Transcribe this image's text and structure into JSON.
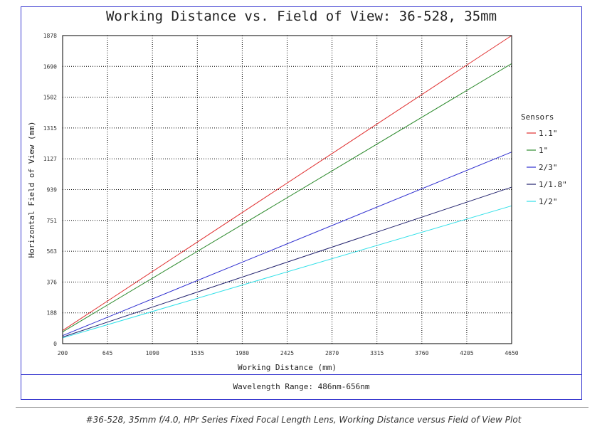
{
  "chart_data": {
    "type": "line",
    "title": "Working Distance vs. Field of View: 36-528, 35mm",
    "xlabel": "Working Distance (mm)",
    "ylabel": "Horizontal Field of View (mm)",
    "x_ticks": [
      "200",
      "645",
      "1090",
      "1535",
      "1980",
      "2425",
      "2870",
      "3315",
      "3760",
      "4205",
      "4650"
    ],
    "y_ticks": [
      "0",
      "188",
      "376",
      "563",
      "751",
      "939",
      "1127",
      "1315",
      "1502",
      "1690",
      "1878"
    ],
    "xlim": [
      200,
      4650
    ],
    "ylim": [
      0,
      1878
    ],
    "grid": true,
    "legend_title": "Sensors",
    "legend_position": "right",
    "series": [
      {
        "name": "1.1\"",
        "color": "#e03030",
        "x": [
          200,
          4650
        ],
        "y": [
          80,
          1878
        ]
      },
      {
        "name": "1\"",
        "color": "#2e8b2e",
        "x": [
          200,
          4650
        ],
        "y": [
          72,
          1707
        ]
      },
      {
        "name": "2/3\"",
        "color": "#3030d0",
        "x": [
          200,
          4650
        ],
        "y": [
          49,
          1168
        ]
      },
      {
        "name": "1/1.8\"",
        "color": "#22226e",
        "x": [
          200,
          4650
        ],
        "y": [
          40,
          954
        ]
      },
      {
        "name": "1/2\"",
        "color": "#30e0e8",
        "x": [
          200,
          4650
        ],
        "y": [
          35,
          840
        ]
      }
    ]
  },
  "footer": {
    "wavelength": "Wavelength Range: 486nm-656nm"
  },
  "caption": "#36-528, 35mm f/4.0, HPr Series Fixed Focal Length Lens, Working Distance versus Field of View Plot"
}
